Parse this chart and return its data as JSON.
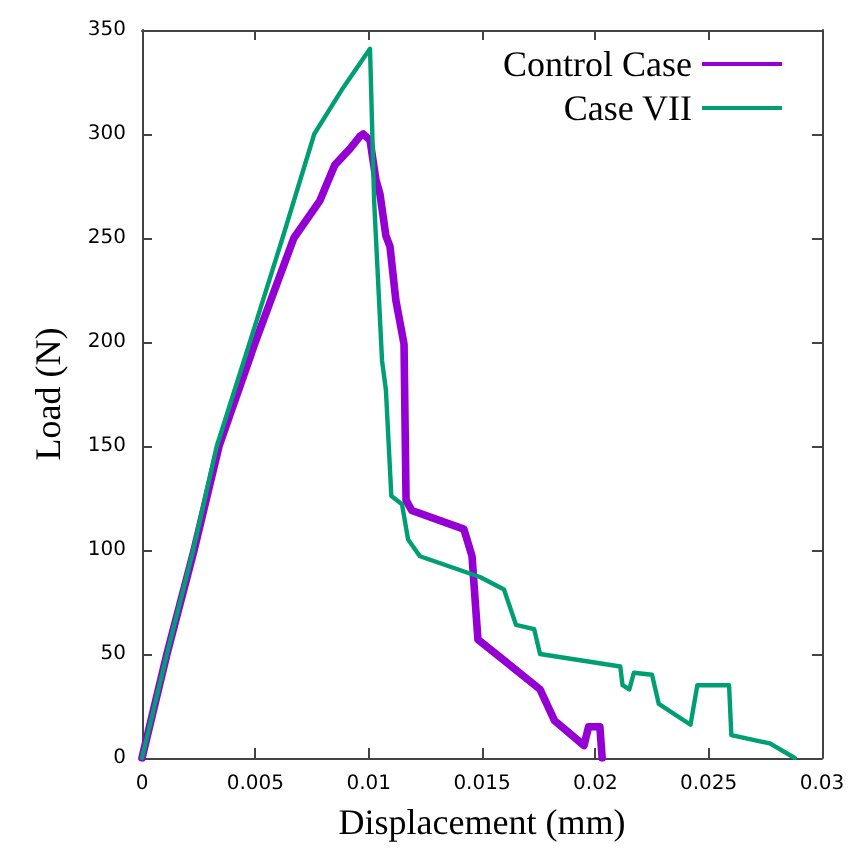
{
  "chart_data": {
    "type": "line",
    "xlabel": "Displacement (mm)",
    "ylabel": "Load (N)",
    "xlim": [
      0,
      0.03
    ],
    "xticks": [
      0,
      0.005,
      0.01,
      0.015,
      0.02,
      0.025,
      0.03
    ],
    "ylim": [
      0,
      350
    ],
    "yticks": [
      0,
      50,
      100,
      150,
      200,
      250,
      300,
      350
    ],
    "grid": false,
    "legend": "top right",
    "marker": "none",
    "line_style": "solid",
    "series": [
      {
        "name": "Control Case",
        "color": "#9400d3",
        "x": [
          0,
          0.0011,
          0.0023,
          0.0034,
          0.005,
          0.0067,
          0.00785,
          0.0085,
          0.00918,
          0.00962,
          0.00976,
          0.01006,
          0.01032,
          0.0105,
          0.01076,
          0.01094,
          0.0112,
          0.01156,
          0.01165,
          0.0119,
          0.0142,
          0.01456,
          0.01482,
          0.01756,
          0.0182,
          0.0195,
          0.0197,
          0.0202,
          0.0203
        ],
        "values": [
          0,
          50,
          100,
          150,
          200,
          250,
          268,
          285,
          293,
          299,
          300,
          297,
          278,
          271,
          251,
          246,
          220,
          199,
          124,
          119,
          110,
          97,
          57,
          33,
          18,
          6,
          15,
          15,
          0
        ]
      },
      {
        "name": "Case VII",
        "color": "#009e73",
        "x": [
          0,
          0.0011,
          0.00226,
          0.0033,
          0.00476,
          0.0062,
          0.0076,
          0.0088,
          0.01006,
          0.01024,
          0.01059,
          0.01076,
          0.011,
          0.01147,
          0.01174,
          0.01226,
          0.01491,
          0.01597,
          0.0165,
          0.0173,
          0.01756,
          0.0211,
          0.0212,
          0.0215,
          0.0217,
          0.0225,
          0.0228,
          0.0242,
          0.0245,
          0.0259,
          0.026,
          0.0277,
          0.0288
        ],
        "values": [
          0,
          50,
          100,
          150,
          200,
          250,
          300,
          321,
          341,
          268,
          191,
          177,
          126,
          122,
          105,
          97,
          87,
          81,
          64,
          62,
          50,
          44,
          35,
          33,
          41,
          40,
          26,
          16,
          35,
          35,
          11,
          7,
          0
        ]
      }
    ]
  }
}
